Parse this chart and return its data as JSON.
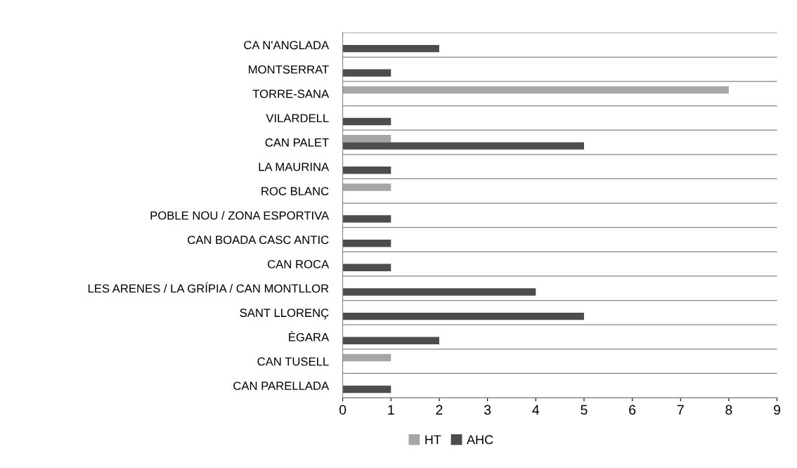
{
  "chart_data": {
    "type": "bar",
    "orientation": "horizontal",
    "categories": [
      "CA N'ANGLADA",
      "MONTSERRAT",
      "TORRE-SANA",
      "VILARDELL",
      "CAN PALET",
      "LA MAURINA",
      "ROC BLANC",
      "POBLE NOU / ZONA ESPORTIVA",
      "CAN BOADA CASC ANTIC",
      "CAN ROCA",
      "LES ARENES / LA GRÍPIA / CAN MONTLLOR",
      "SANT LLORENÇ",
      "ÈGARA",
      "CAN TUSELL",
      "CAN PARELLADA"
    ],
    "series": [
      {
        "name": "HT",
        "color": "#a6a6a6",
        "values": [
          null,
          null,
          8,
          null,
          1,
          null,
          1,
          null,
          null,
          null,
          null,
          null,
          null,
          1,
          null
        ]
      },
      {
        "name": "AHC",
        "color": "#4d4d4d",
        "values": [
          2,
          1,
          null,
          1,
          5,
          1,
          null,
          1,
          1,
          1,
          4,
          5,
          2,
          null,
          1
        ]
      }
    ],
    "xlim": [
      0,
      9
    ],
    "xticks": [
      0,
      1,
      2,
      3,
      4,
      5,
      6,
      7,
      8,
      9
    ],
    "grid": "y",
    "legend": "bottom"
  }
}
